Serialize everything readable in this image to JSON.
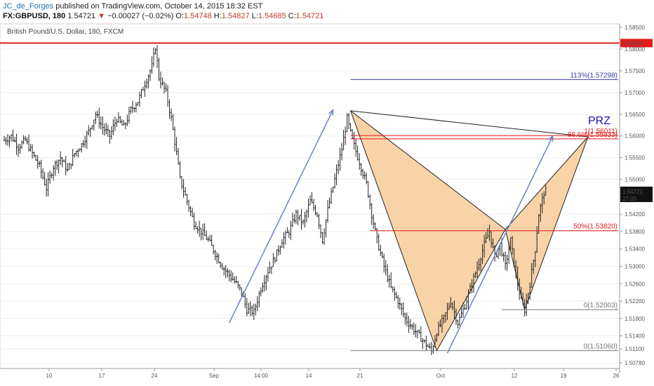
{
  "header": {
    "author": "JC_de_Forges",
    "published_text": "published on TradingView.com, October 14, 2015 18:32 EST",
    "symbol": "FX:GBPUSD, 180",
    "last": "1.54721",
    "change_arrow": "▼",
    "change": "−0.00027 (−0.02%)",
    "o_label": "O:",
    "o_value": "1.54748",
    "h_label": "H:",
    "h_value": "1.54827",
    "l_label": "L:",
    "l_value": "1.54685",
    "c_label": "C:",
    "c_value": "1.54721"
  },
  "chart_data": {
    "type": "candlestick",
    "title": "British Pound/U.S. Dollar, 180, FXCM",
    "ylim": [
      1.5065,
      1.5858
    ],
    "y_ticks": [
      "1.58500",
      "1.58000",
      "1.57500",
      "1.57000",
      "1.56500",
      "1.56000",
      "1.55500",
      "1.55000",
      "1.54200",
      "1.53800",
      "1.53400",
      "1.53000",
      "1.52600",
      "1.52200",
      "1.51800",
      "1.51400",
      "1.51100",
      "1.50780"
    ],
    "x_ticks": [
      "10",
      "17",
      "24",
      "Sep",
      "14:00",
      "14",
      "21",
      "Oct",
      "12",
      "19",
      "26"
    ],
    "price_path": [
      [
        0,
        1.559
      ],
      [
        4,
        1.56
      ],
      [
        8,
        1.5575
      ],
      [
        12,
        1.559
      ],
      [
        16,
        1.556
      ],
      [
        20,
        1.553
      ],
      [
        24,
        1.548
      ],
      [
        28,
        1.553
      ],
      [
        32,
        1.555
      ],
      [
        36,
        1.552
      ],
      [
        40,
        1.556
      ],
      [
        44,
        1.558
      ],
      [
        48,
        1.561
      ],
      [
        52,
        1.565
      ],
      [
        56,
        1.562
      ],
      [
        60,
        1.56
      ],
      [
        64,
        1.564
      ],
      [
        68,
        1.562
      ],
      [
        72,
        1.566
      ],
      [
        76,
        1.568
      ],
      [
        80,
        1.572
      ],
      [
        84,
        1.576
      ],
      [
        86,
        1.5805
      ],
      [
        88,
        1.5735
      ],
      [
        92,
        1.57
      ],
      [
        95,
        1.564
      ],
      [
        98,
        1.556
      ],
      [
        100,
        1.55
      ],
      [
        104,
        1.545
      ],
      [
        108,
        1.54
      ],
      [
        112,
        1.538
      ],
      [
        116,
        1.536
      ],
      [
        120,
        1.533
      ],
      [
        124,
        1.53
      ],
      [
        128,
        1.528
      ],
      [
        132,
        1.526
      ],
      [
        135,
        1.524
      ],
      [
        138,
        1.52
      ],
      [
        142,
        1.5195
      ],
      [
        146,
        1.525
      ],
      [
        150,
        1.529
      ],
      [
        154,
        1.532
      ],
      [
        158,
        1.536
      ],
      [
        162,
        1.538
      ],
      [
        166,
        1.542
      ],
      [
        170,
        1.54
      ],
      [
        174,
        1.545
      ],
      [
        178,
        1.542
      ],
      [
        181,
        1.536
      ],
      [
        184,
        1.543
      ],
      [
        188,
        1.55
      ],
      [
        192,
        1.557
      ],
      [
        195,
        1.564
      ],
      [
        198,
        1.559
      ],
      [
        202,
        1.554
      ],
      [
        206,
        1.549
      ],
      [
        209,
        1.542
      ],
      [
        212,
        1.536
      ],
      [
        216,
        1.53
      ],
      [
        220,
        1.525
      ],
      [
        224,
        1.522
      ],
      [
        228,
        1.518
      ],
      [
        232,
        1.516
      ],
      [
        236,
        1.514
      ],
      [
        240,
        1.512
      ],
      [
        243,
        1.5105
      ],
      [
        246,
        1.515
      ],
      [
        250,
        1.518
      ],
      [
        254,
        1.522
      ],
      [
        258,
        1.517
      ],
      [
        262,
        1.521
      ],
      [
        266,
        1.526
      ],
      [
        270,
        1.531
      ],
      [
        273,
        1.535
      ],
      [
        276,
        1.538
      ],
      [
        279,
        1.532
      ],
      [
        282,
        1.535
      ],
      [
        285,
        1.53
      ],
      [
        288,
        1.536
      ],
      [
        291,
        1.528
      ],
      [
        294,
        1.522
      ],
      [
        296,
        1.52
      ],
      [
        299,
        1.526
      ],
      [
        302,
        1.534
      ],
      [
        304,
        1.542
      ],
      [
        307,
        1.547
      ],
      [
        308,
        1.5472
      ]
    ],
    "horizontal_lines": [
      {
        "price": 1.58138,
        "color": "#e31b1b",
        "label": "1.58138"
      }
    ],
    "fib_levels": [
      {
        "label": "113%(1.57298)",
        "price": 1.57298,
        "color": "#3a3aa8",
        "x0": 197,
        "x1": 350
      },
      {
        "label": "88.6%(1.55933)",
        "price": 1.55933,
        "color": "#e31b1b",
        "x0": 197,
        "x1": 350
      },
      {
        "label": "1(1.56011)",
        "price": 1.56011,
        "color": "#e31b1b",
        "x0": 197,
        "x1": 350
      },
      {
        "label": "50%(1.53820)",
        "price": 1.5382,
        "color": "#e31b1b",
        "x0": 208,
        "x1": 350
      },
      {
        "label": "0(1.52003)",
        "price": 1.52003,
        "color": "#777777",
        "x0": 283,
        "x1": 350
      },
      {
        "label": "0(1.51060)",
        "price": 1.5106,
        "color": "#777777",
        "x0": 197,
        "x1": 350
      }
    ],
    "pattern": {
      "label": "PRZ",
      "label_color": "#1515b5",
      "fill": "#f5c48a",
      "X": [
        197,
        1.5658
      ],
      "A": [
        246,
        1.5106
      ],
      "B": [
        285,
        1.5385
      ],
      "C": [
        296,
        1.52
      ],
      "D": [
        332,
        1.5598
      ]
    },
    "arrows": [
      {
        "from": [
          128,
          1.517
        ],
        "to": [
          187,
          1.566
        ],
        "color": "#6b84c5"
      },
      {
        "from": [
          252,
          1.51
        ],
        "to": [
          312,
          1.56
        ],
        "color": "#6b84c5"
      }
    ],
    "current_price": {
      "value": "1.54721",
      "countdown": "27:05"
    },
    "colors": {
      "bg": "#ffffff",
      "grid": "#eeeeee",
      "candle": "#222222",
      "axis": "#555555"
    }
  }
}
